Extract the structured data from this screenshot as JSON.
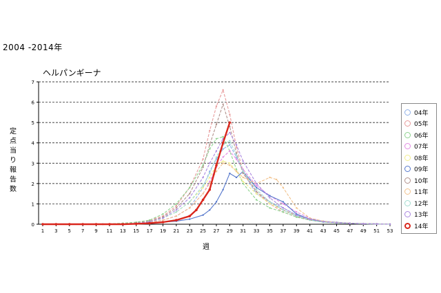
{
  "caption": "2004 -2014年",
  "chart_data": {
    "type": "line",
    "title": "ヘルパンギーナ",
    "xlabel": "週",
    "ylabel": "定点当り報告数",
    "xlim": [
      1,
      53
    ],
    "ylim": [
      0,
      7
    ],
    "x_ticks": [
      1,
      3,
      5,
      7,
      9,
      11,
      13,
      15,
      17,
      19,
      21,
      23,
      25,
      27,
      29,
      31,
      33,
      35,
      37,
      39,
      41,
      43,
      45,
      47,
      49,
      51,
      53
    ],
    "y_ticks": [
      0,
      1,
      2,
      3,
      4,
      5,
      6,
      7
    ],
    "grid": "horizontal-dashed",
    "legend_position": "right",
    "series": [
      {
        "name": "04年",
        "color": "#8fb0e8",
        "dashed": true,
        "bold": false,
        "x": [
          1,
          5,
          10,
          13,
          15,
          17,
          19,
          21,
          23,
          25,
          26,
          27,
          28,
          29,
          30,
          31,
          32,
          33,
          35,
          37,
          39,
          41,
          43,
          45,
          47,
          49,
          51,
          53
        ],
        "y": [
          0,
          0,
          0,
          0.02,
          0.05,
          0.1,
          0.2,
          0.4,
          0.8,
          1.8,
          2.6,
          3.2,
          3.7,
          3.9,
          3.3,
          2.6,
          2.0,
          1.5,
          1.1,
          0.8,
          0.45,
          0.25,
          0.15,
          0.1,
          0.05,
          0.03,
          0.02,
          0
        ]
      },
      {
        "name": "05年",
        "color": "#e89a9a",
        "dashed": true,
        "bold": false,
        "x": [
          1,
          5,
          10,
          13,
          15,
          17,
          19,
          21,
          23,
          25,
          26,
          27,
          28,
          29,
          30,
          31,
          33,
          35,
          37,
          39,
          41,
          43,
          45,
          47,
          49,
          51,
          53
        ],
        "y": [
          0,
          0,
          0,
          0.03,
          0.08,
          0.2,
          0.4,
          0.9,
          1.8,
          3.2,
          4.6,
          5.8,
          6.6,
          5.4,
          3.8,
          2.6,
          1.6,
          1.0,
          0.6,
          0.35,
          0.2,
          0.12,
          0.08,
          0.05,
          0.03,
          0.02,
          0
        ]
      },
      {
        "name": "06年",
        "color": "#8ed38e",
        "dashed": true,
        "bold": false,
        "x": [
          1,
          5,
          10,
          13,
          15,
          17,
          19,
          21,
          23,
          25,
          26,
          27,
          28,
          29,
          30,
          31,
          33,
          35,
          37,
          39,
          41,
          43,
          45,
          47,
          49,
          51,
          53
        ],
        "y": [
          0,
          0,
          0,
          0.05,
          0.1,
          0.2,
          0.5,
          1.0,
          1.8,
          2.9,
          3.7,
          4.2,
          4.3,
          3.6,
          2.7,
          2.0,
          1.2,
          0.8,
          0.6,
          0.35,
          0.2,
          0.1,
          0.06,
          0.04,
          0.02,
          0.01,
          0
        ]
      },
      {
        "name": "07年",
        "color": "#e48ae4",
        "dashed": true,
        "bold": false,
        "x": [
          1,
          5,
          10,
          13,
          15,
          17,
          19,
          21,
          23,
          25,
          26,
          27,
          28,
          29,
          30,
          31,
          33,
          35,
          37,
          39,
          41,
          43,
          45,
          47,
          49,
          51,
          53
        ],
        "y": [
          0,
          0,
          0,
          0.02,
          0.05,
          0.1,
          0.2,
          0.4,
          0.8,
          1.5,
          2.1,
          2.8,
          3.3,
          3.6,
          3.2,
          2.7,
          1.9,
          1.4,
          1.0,
          0.6,
          0.3,
          0.15,
          0.08,
          0.05,
          0.03,
          0.02,
          0
        ]
      },
      {
        "name": "08年",
        "color": "#f2ee8a",
        "dashed": true,
        "bold": false,
        "x": [
          1,
          5,
          10,
          13,
          15,
          17,
          19,
          21,
          23,
          25,
          26,
          27,
          28,
          29,
          30,
          31,
          33,
          35,
          37,
          39,
          41,
          43,
          45,
          47,
          49,
          51,
          53
        ],
        "y": [
          0,
          0,
          0,
          0.02,
          0.05,
          0.1,
          0.3,
          0.6,
          1.1,
          1.8,
          2.3,
          2.9,
          3.1,
          3.0,
          2.6,
          2.1,
          1.5,
          1.0,
          0.7,
          0.45,
          0.25,
          0.12,
          0.07,
          0.04,
          0.02,
          0.01,
          0
        ]
      },
      {
        "name": "09年",
        "color": "#5577cc",
        "dashed": false,
        "bold": false,
        "x": [
          1,
          5,
          10,
          13,
          15,
          17,
          19,
          21,
          23,
          25,
          26,
          27,
          28,
          29,
          30,
          31,
          32,
          33,
          35,
          37,
          39,
          41,
          43,
          45,
          47,
          49,
          51,
          53
        ],
        "y": [
          0,
          0,
          0,
          0,
          0.02,
          0.05,
          0.1,
          0.15,
          0.25,
          0.45,
          0.7,
          1.1,
          1.7,
          2.5,
          2.3,
          2.6,
          2.2,
          1.8,
          1.4,
          1.1,
          0.5,
          0.25,
          0.12,
          0.08,
          0.05,
          0.03,
          0.02,
          0
        ]
      },
      {
        "name": "10年",
        "color": "#b0908a",
        "dashed": true,
        "bold": false,
        "x": [
          1,
          5,
          10,
          13,
          15,
          17,
          19,
          21,
          23,
          25,
          26,
          27,
          28,
          29,
          30,
          31,
          33,
          35,
          37,
          39,
          41,
          43,
          45,
          47,
          49,
          51,
          53
        ],
        "y": [
          0,
          0,
          0,
          0.02,
          0.06,
          0.15,
          0.35,
          0.8,
          1.5,
          2.8,
          3.9,
          4.9,
          5.9,
          4.8,
          3.5,
          2.5,
          1.6,
          1.1,
          0.7,
          0.4,
          0.22,
          0.12,
          0.07,
          0.04,
          0.02,
          0.01,
          0
        ]
      },
      {
        "name": "11年",
        "color": "#f2c28c",
        "dashed": true,
        "bold": false,
        "x": [
          1,
          5,
          10,
          13,
          15,
          17,
          19,
          21,
          23,
          25,
          26,
          27,
          28,
          29,
          30,
          31,
          33,
          35,
          36,
          37,
          39,
          41,
          43,
          45,
          47,
          49,
          51,
          53
        ],
        "y": [
          0,
          0,
          0,
          0.02,
          0.04,
          0.1,
          0.2,
          0.4,
          0.8,
          1.5,
          2.0,
          2.6,
          3.0,
          2.9,
          2.6,
          2.3,
          2.0,
          2.3,
          2.2,
          1.8,
          0.8,
          0.3,
          0.15,
          0.08,
          0.05,
          0.03,
          0.02,
          0
        ]
      },
      {
        "name": "12年",
        "color": "#a2dcd0",
        "dashed": true,
        "bold": false,
        "x": [
          1,
          5,
          10,
          13,
          15,
          17,
          19,
          21,
          23,
          25,
          26,
          27,
          28,
          29,
          30,
          31,
          33,
          35,
          37,
          39,
          41,
          43,
          45,
          47,
          49,
          51,
          53
        ],
        "y": [
          0,
          0,
          0,
          0.02,
          0.05,
          0.12,
          0.3,
          0.6,
          1.1,
          1.9,
          2.5,
          3.3,
          3.9,
          4.1,
          3.4,
          2.6,
          1.7,
          1.1,
          0.7,
          0.4,
          0.2,
          0.1,
          0.06,
          0.04,
          0.02,
          0.01,
          0
        ]
      },
      {
        "name": "13年",
        "color": "#aa86e0",
        "dashed": true,
        "bold": false,
        "x": [
          1,
          5,
          10,
          13,
          15,
          17,
          19,
          21,
          23,
          25,
          26,
          27,
          28,
          29,
          30,
          31,
          33,
          35,
          37,
          39,
          41,
          43,
          45,
          47,
          49,
          51,
          53
        ],
        "y": [
          0,
          0,
          0,
          0.02,
          0.05,
          0.12,
          0.3,
          0.7,
          1.3,
          2.3,
          3.0,
          3.6,
          4.2,
          4.5,
          3.9,
          3.1,
          2.0,
          1.3,
          0.8,
          0.45,
          0.25,
          0.12,
          0.07,
          0.04,
          0.02,
          0.01,
          0
        ]
      },
      {
        "name": "14年",
        "color": "#d9261c",
        "dashed": false,
        "bold": true,
        "x": [
          1,
          3,
          5,
          7,
          9,
          11,
          13,
          15,
          17,
          19,
          21,
          23,
          24,
          25,
          26,
          27,
          28,
          29
        ],
        "y": [
          0,
          0,
          0,
          0,
          0,
          0,
          0,
          0.02,
          0.05,
          0.1,
          0.2,
          0.4,
          0.7,
          1.2,
          1.7,
          2.9,
          4.0,
          5.0
        ]
      }
    ]
  }
}
